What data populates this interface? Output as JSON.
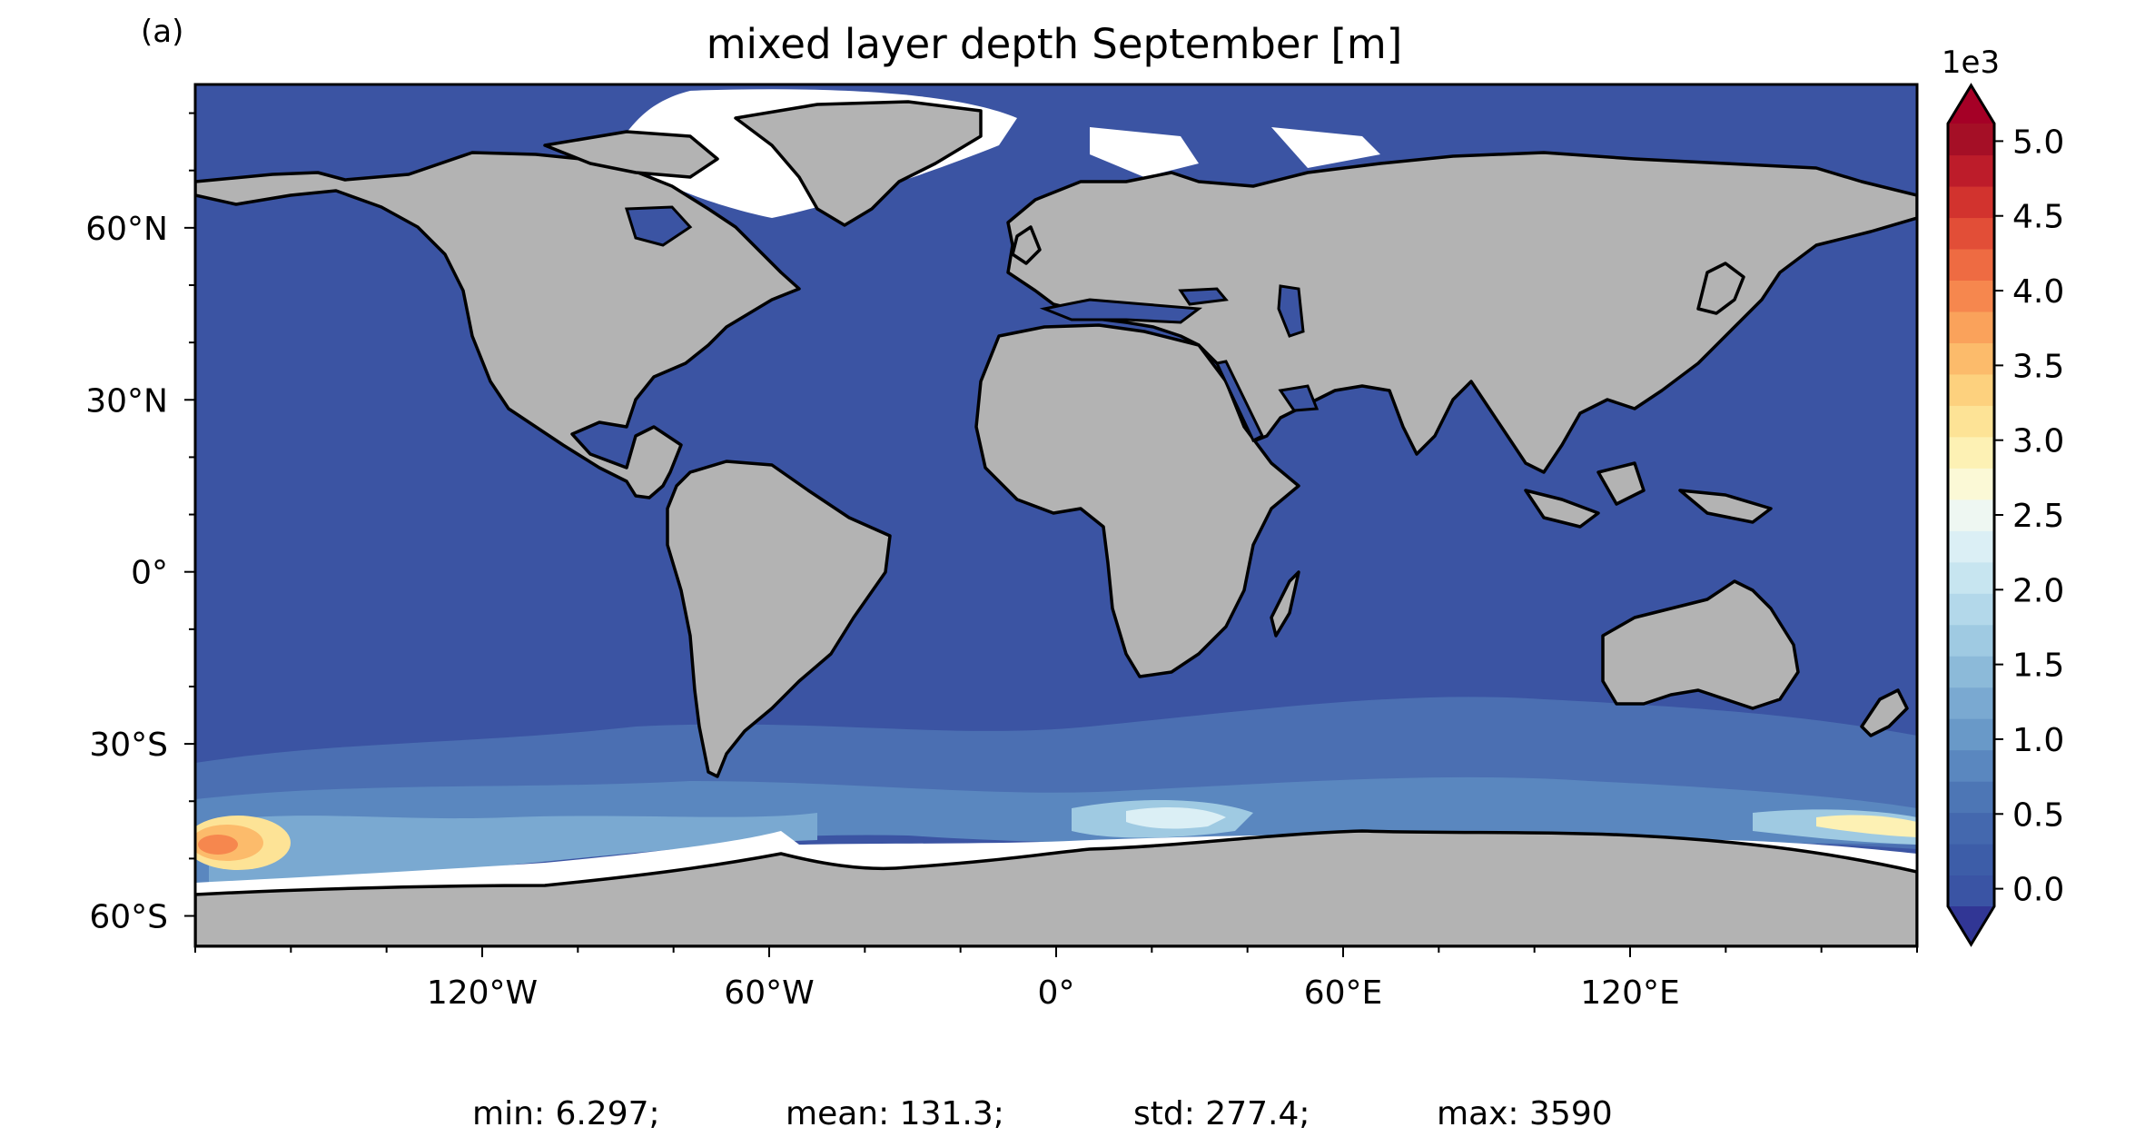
{
  "panel_label": "(a)",
  "title": "mixed layer depth September [m]",
  "colorbar": {
    "multiplier": "1e3",
    "ticks": [
      "0.0",
      "0.5",
      "1.0",
      "1.5",
      "2.0",
      "2.5",
      "3.0",
      "3.5",
      "4.0",
      "4.5",
      "5.0"
    ],
    "range": [
      0,
      5000
    ],
    "colors": [
      "#3a54a4",
      "#3d5da8",
      "#4468ae",
      "#4d76b5",
      "#5a87bf",
      "#6999c8",
      "#7aa9d1",
      "#8cbad9",
      "#9fcae2",
      "#b3d8ea",
      "#c7e5f0",
      "#dbeff5",
      "#eef7f2",
      "#fbf9d6",
      "#fdf1b4",
      "#fde396",
      "#fdd17e",
      "#fcbb6b",
      "#faa25b",
      "#f6874e",
      "#ee6b42",
      "#e24e37",
      "#d2332e",
      "#bd1c2a",
      "#a50f26"
    ],
    "under_color": "#313695",
    "over_color": "#a50026"
  },
  "map": {
    "lon_ticks": [
      "120°W",
      "60°W",
      "0°",
      "60°E",
      "120°E"
    ],
    "lat_ticks": [
      "60°N",
      "30°N",
      "0°",
      "30°S",
      "60°S"
    ],
    "ocean_color": "#3b54a3",
    "land_color": "#b3b3b3",
    "ice_color": "#ffffff"
  },
  "stats": {
    "min": "min: 6.297;",
    "mean": "mean: 131.3;",
    "std": "std: 277.4;",
    "max": "max: 3590"
  }
}
